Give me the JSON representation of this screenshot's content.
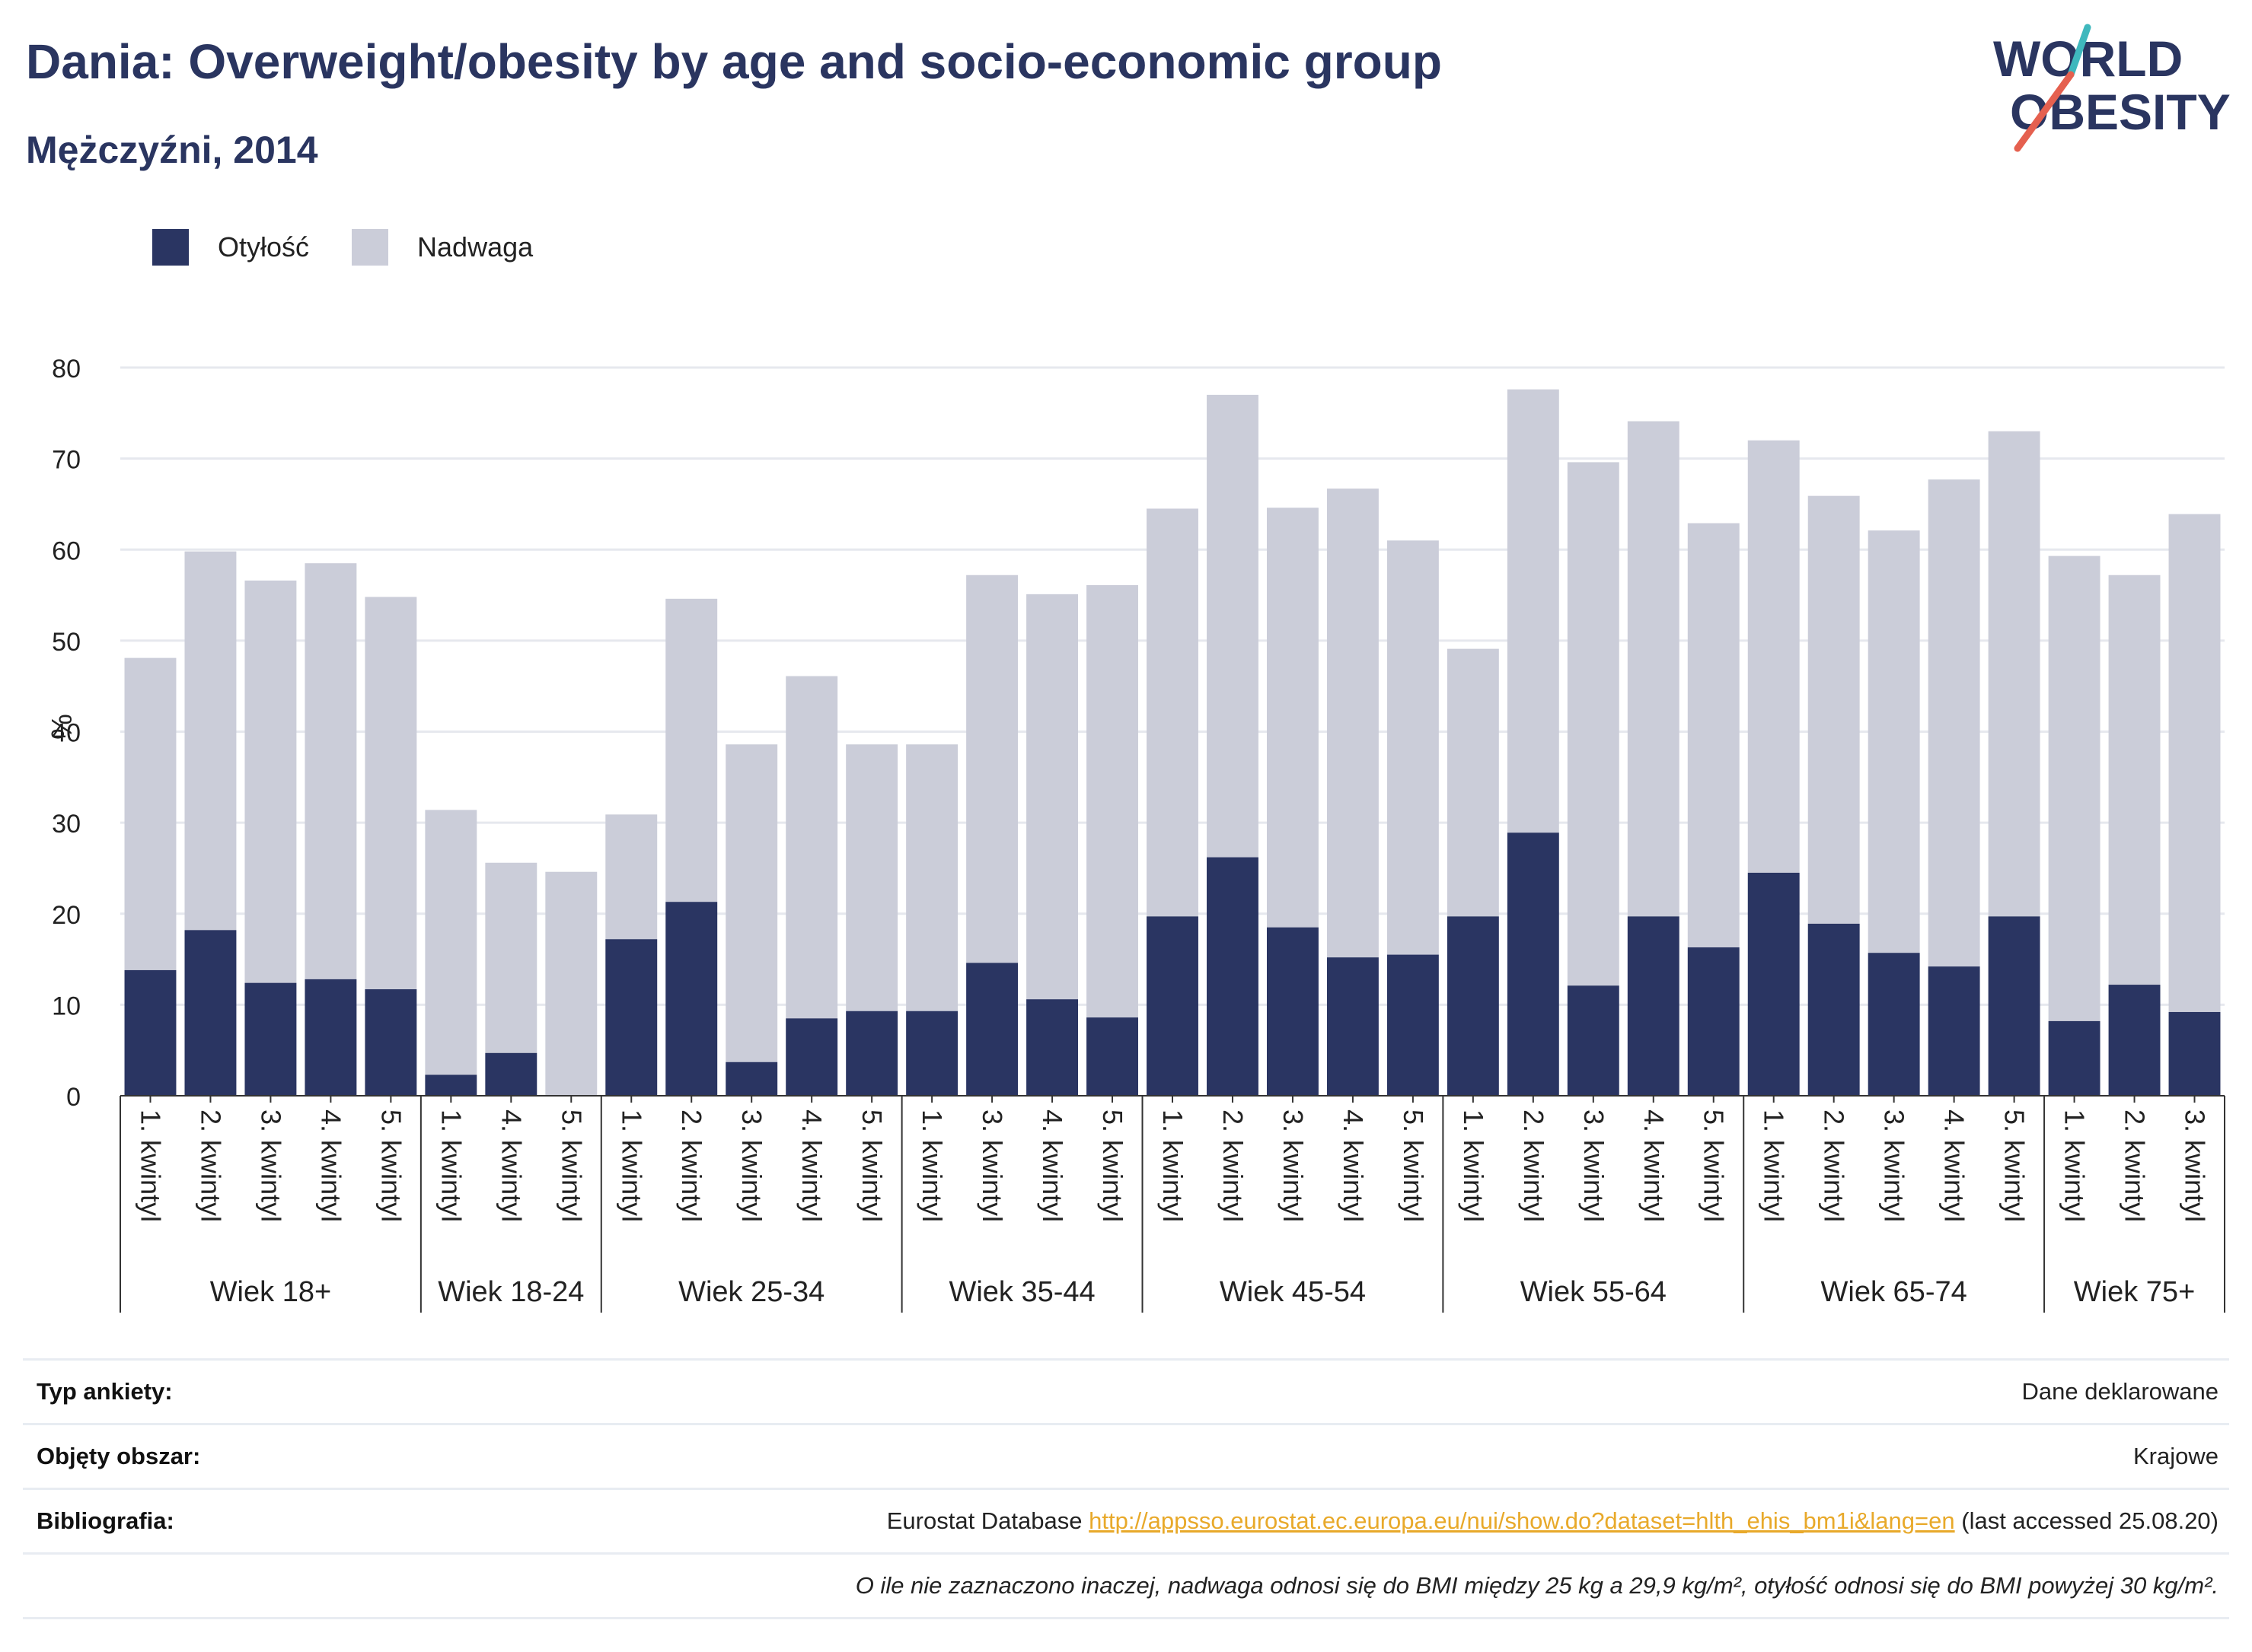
{
  "header": {
    "title": "Dania: Overweight/obesity by age and socio-economic group",
    "subtitle": "Mężczyźni, 2014",
    "logo_top": "WORLD",
    "logo_bottom": "OBESITY"
  },
  "legend": {
    "obesity_label": "Otyłość",
    "overweight_label": "Nadwaga"
  },
  "colors": {
    "obesity": "#2a3562",
    "overweight": "#cbcdd9",
    "grid": "#e6e8ee",
    "axis": "#333333",
    "logo_text": "#2a3560",
    "logo_red": "#e5604f",
    "logo_teal": "#3fb8bd",
    "link": "#e8a92a"
  },
  "chart_data": {
    "type": "bar",
    "stacked": true,
    "ylabel": "%",
    "ylim": [
      0,
      80
    ],
    "yticks": [
      0,
      10,
      20,
      30,
      40,
      50,
      60,
      70,
      80
    ],
    "grid": true,
    "legend_position": "top-left",
    "groups": [
      {
        "label": "Wiek 18+",
        "categories": [
          "1. kwintyl",
          "2. kwintyl",
          "3. kwintyl",
          "4. kwintyl",
          "5. kwintyl"
        ],
        "obesity": [
          13.8,
          18.2,
          12.4,
          12.8,
          11.7
        ],
        "overweight": [
          34.3,
          41.6,
          44.2,
          45.7,
          43.1
        ]
      },
      {
        "label": "Wiek 18-24",
        "categories": [
          "1. kwintyl",
          "4. kwintyl",
          "5. kwintyl"
        ],
        "obesity": [
          2.3,
          4.7,
          0
        ],
        "overweight": [
          29.1,
          20.9,
          24.6
        ]
      },
      {
        "label": "Wiek 25-34",
        "categories": [
          "1. kwintyl",
          "2. kwintyl",
          "3. kwintyl",
          "4. kwintyl",
          "5. kwintyl"
        ],
        "obesity": [
          17.2,
          21.3,
          3.7,
          8.5,
          9.3
        ],
        "overweight": [
          13.7,
          33.3,
          34.9,
          37.6,
          29.3
        ]
      },
      {
        "label": "Wiek 35-44",
        "categories": [
          "1. kwintyl",
          "3. kwintyl",
          "4. kwintyl",
          "5. kwintyl"
        ],
        "obesity": [
          9.3,
          14.6,
          10.6,
          8.6
        ],
        "overweight": [
          29.3,
          42.6,
          44.5,
          47.5
        ]
      },
      {
        "label": "Wiek 45-54",
        "categories": [
          "1. kwintyl",
          "2. kwintyl",
          "3. kwintyl",
          "4. kwintyl",
          "5. kwintyl"
        ],
        "obesity": [
          19.7,
          26.2,
          18.5,
          15.2,
          15.5
        ],
        "overweight": [
          44.8,
          50.8,
          46.1,
          51.5,
          45.5
        ]
      },
      {
        "label": "Wiek 55-64",
        "categories": [
          "1. kwintyl",
          "2. kwintyl",
          "3. kwintyl",
          "4. kwintyl",
          "5. kwintyl"
        ],
        "obesity": [
          19.7,
          28.9,
          12.1,
          19.7,
          16.3
        ],
        "overweight": [
          29.4,
          48.7,
          57.5,
          54.4,
          46.6
        ]
      },
      {
        "label": "Wiek 65-74",
        "categories": [
          "1. kwintyl",
          "2. kwintyl",
          "3. kwintyl",
          "4. kwintyl",
          "5. kwintyl"
        ],
        "obesity": [
          24.5,
          18.9,
          15.7,
          14.2,
          19.7
        ],
        "overweight": [
          47.5,
          47.0,
          46.4,
          53.5,
          53.3
        ]
      },
      {
        "label": "Wiek 75+",
        "categories": [
          "1. kwintyl",
          "2. kwintyl",
          "3. kwintyl"
        ],
        "obesity": [
          8.2,
          12.2,
          9.2
        ],
        "overweight": [
          51.1,
          45.0,
          54.7
        ]
      }
    ]
  },
  "footer": {
    "survey_type_label": "Typ ankiety:",
    "survey_type_value": "Dane deklarowane",
    "area_label": "Objęty obszar:",
    "area_value": "Krajowe",
    "bibliography_label": "Bibliografia:",
    "bibliography_prefix": "Eurostat Database",
    "bibliography_link": "http://appsso.eurostat.ec.europa.eu/nui/show.do?dataset=hlth_ehis_bm1i&lang=en",
    "bibliography_suffix": "(last accessed 25.08.20)",
    "note": "O ile nie zaznaczono inaczej, nadwaga odnosi się do BMI między 25 kg a 29,9 kg/m², otyłość odnosi się do BMI powyżej 30 kg/m²."
  }
}
